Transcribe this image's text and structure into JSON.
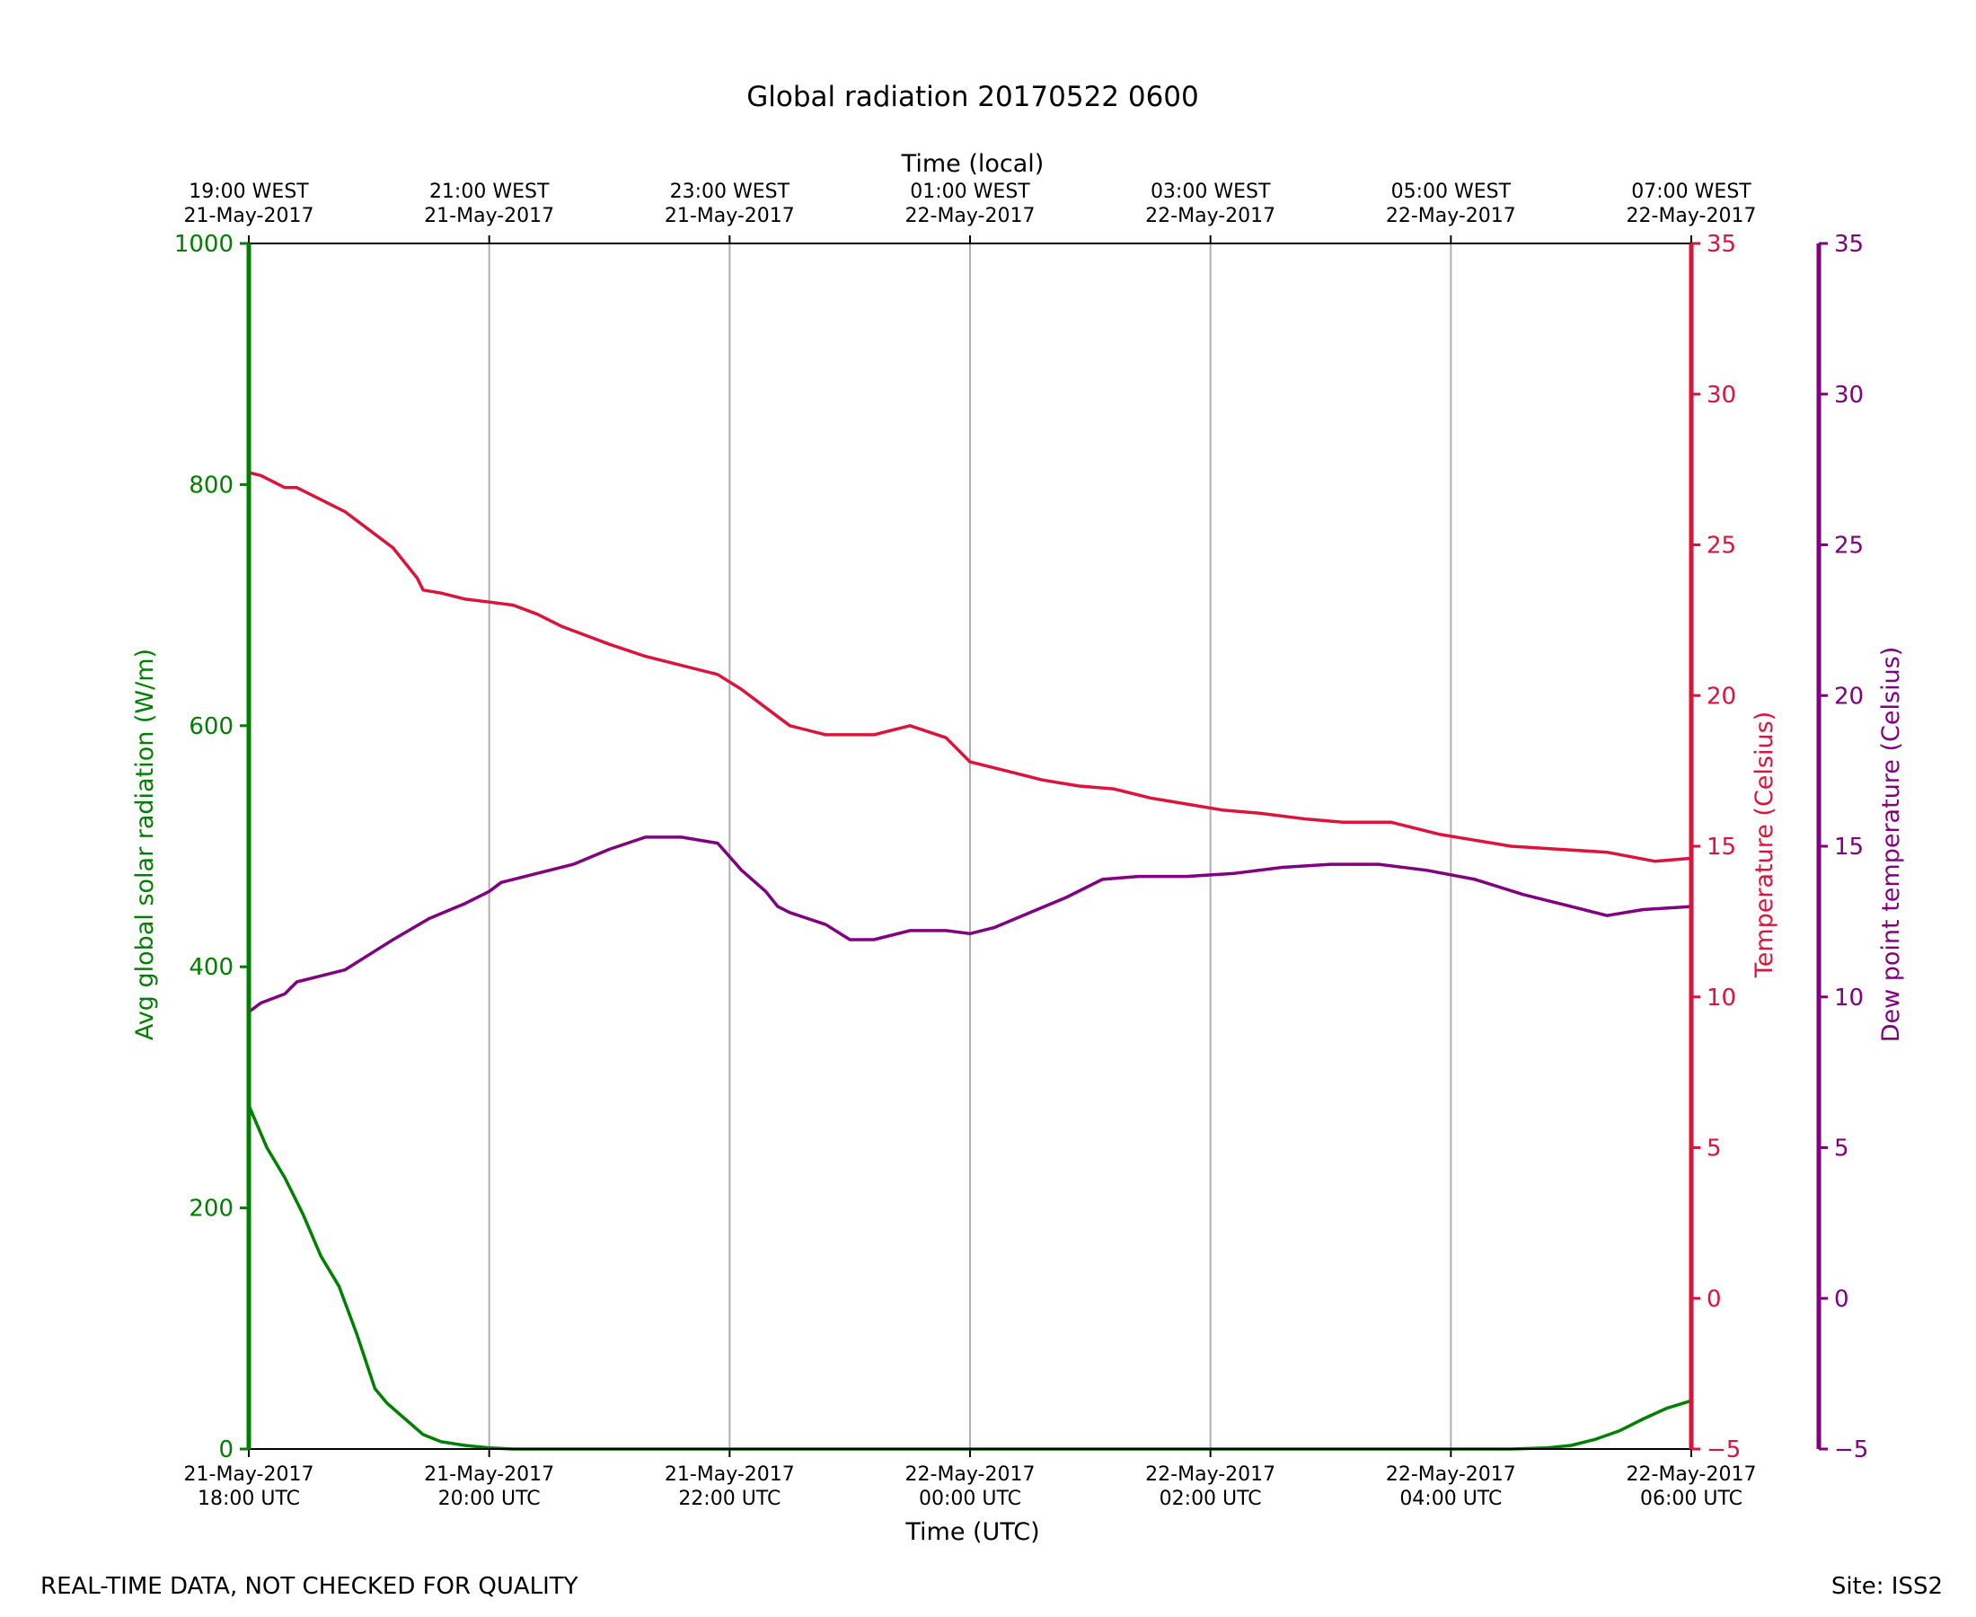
{
  "chart_data": {
    "type": "line",
    "title": "Global radiation 20170522 0600",
    "xlabel_bottom": "Time (UTC)",
    "xlabel_top": "Time (local)",
    "xlim_hours_utc": [
      0,
      12
    ],
    "bottom_ticks": [
      {
        "hour": 0,
        "line1": "21-May-2017",
        "line2": "18:00 UTC"
      },
      {
        "hour": 2,
        "line1": "21-May-2017",
        "line2": "20:00 UTC"
      },
      {
        "hour": 4,
        "line1": "21-May-2017",
        "line2": "22:00 UTC"
      },
      {
        "hour": 6,
        "line1": "22-May-2017",
        "line2": "00:00 UTC"
      },
      {
        "hour": 8,
        "line1": "22-May-2017",
        "line2": "02:00 UTC"
      },
      {
        "hour": 10,
        "line1": "22-May-2017",
        "line2": "04:00 UTC"
      },
      {
        "hour": 12,
        "line1": "22-May-2017",
        "line2": "06:00 UTC"
      }
    ],
    "top_ticks": [
      {
        "hour": 0,
        "line1": "19:00 WEST",
        "line2": "21-May-2017"
      },
      {
        "hour": 2,
        "line1": "21:00 WEST",
        "line2": "21-May-2017"
      },
      {
        "hour": 4,
        "line1": "23:00 WEST",
        "line2": "21-May-2017"
      },
      {
        "hour": 6,
        "line1": "01:00 WEST",
        "line2": "22-May-2017"
      },
      {
        "hour": 8,
        "line1": "03:00 WEST",
        "line2": "22-May-2017"
      },
      {
        "hour": 10,
        "line1": "05:00 WEST",
        "line2": "22-May-2017"
      },
      {
        "hour": 12,
        "line1": "07:00 WEST",
        "line2": "22-May-2017"
      }
    ],
    "grid": "vertical",
    "axes": [
      {
        "id": "radiation",
        "label": "Avg global solar radiation (W/m)",
        "color": "#008000",
        "side": "left",
        "ylim": [
          0,
          1000
        ],
        "ticks": [
          0,
          200,
          400,
          600,
          800,
          1000
        ]
      },
      {
        "id": "temperature",
        "label": "Temperature (Celsius)",
        "color": "#dc143c",
        "side": "right",
        "ylim": [
          -5,
          35
        ],
        "ticks": [
          -5,
          0,
          5,
          10,
          15,
          20,
          25,
          30,
          35
        ]
      },
      {
        "id": "dewpoint",
        "label": "Dew point temperature (Celsius)",
        "color": "#800080",
        "side": "right-outer",
        "ylim": [
          -5,
          35
        ],
        "ticks": [
          -5,
          0,
          5,
          10,
          15,
          20,
          25,
          30,
          35
        ]
      }
    ],
    "series": [
      {
        "axis": "radiation",
        "color": "#008000",
        "x": [
          0,
          0.15,
          0.3,
          0.45,
          0.6,
          0.75,
          0.9,
          1.05,
          1.15,
          1.3,
          1.45,
          1.6,
          1.8,
          2.0,
          2.2,
          2.5,
          3,
          4,
          5,
          6,
          7,
          8,
          9,
          10,
          10.5,
          10.8,
          11.0,
          11.2,
          11.4,
          11.6,
          11.8,
          12
        ],
        "y": [
          285,
          250,
          225,
          195,
          160,
          135,
          95,
          50,
          38,
          25,
          12,
          6,
          3,
          1,
          0,
          0,
          0,
          0,
          0,
          0,
          0,
          0,
          0,
          0,
          0,
          1,
          3,
          8,
          15,
          25,
          34,
          40
        ]
      },
      {
        "axis": "temperature",
        "color": "#dc143c",
        "x": [
          0,
          0.1,
          0.3,
          0.4,
          0.6,
          0.8,
          1.0,
          1.2,
          1.4,
          1.45,
          1.6,
          1.8,
          2.0,
          2.2,
          2.4,
          2.6,
          2.8,
          3.0,
          3.3,
          3.6,
          3.9,
          4.1,
          4.3,
          4.5,
          4.8,
          5.0,
          5.2,
          5.5,
          5.8,
          6.0,
          6.3,
          6.6,
          6.9,
          7.2,
          7.5,
          7.8,
          8.1,
          8.4,
          8.8,
          9.1,
          9.5,
          9.9,
          10.2,
          10.5,
          10.9,
          11.3,
          11.7,
          12
        ],
        "y": [
          27.4,
          27.3,
          26.9,
          26.9,
          26.5,
          26.1,
          25.5,
          24.9,
          23.9,
          23.5,
          23.4,
          23.2,
          23.1,
          23.0,
          22.7,
          22.3,
          22.0,
          21.7,
          21.3,
          21.0,
          20.7,
          20.2,
          19.6,
          19.0,
          18.7,
          18.7,
          18.7,
          19.0,
          18.6,
          17.8,
          17.5,
          17.2,
          17.0,
          16.9,
          16.6,
          16.4,
          16.2,
          16.1,
          15.9,
          15.8,
          15.8,
          15.4,
          15.2,
          15.0,
          14.9,
          14.8,
          14.5,
          14.6
        ]
      },
      {
        "axis": "dewpoint",
        "color": "#800080",
        "x": [
          0,
          0.1,
          0.3,
          0.4,
          0.6,
          0.8,
          1.0,
          1.2,
          1.5,
          1.8,
          2.0,
          2.1,
          2.4,
          2.7,
          3.0,
          3.3,
          3.6,
          3.9,
          4.1,
          4.3,
          4.4,
          4.5,
          4.8,
          5.0,
          5.2,
          5.5,
          5.8,
          6.0,
          6.2,
          6.5,
          6.8,
          7.1,
          7.4,
          7.8,
          8.2,
          8.6,
          9.0,
          9.4,
          9.8,
          10.2,
          10.6,
          11.0,
          11.3,
          11.6,
          12
        ],
        "y": [
          9.5,
          9.8,
          10.1,
          10.5,
          10.7,
          10.9,
          11.4,
          11.9,
          12.6,
          13.1,
          13.5,
          13.8,
          14.1,
          14.4,
          14.9,
          15.3,
          15.3,
          15.1,
          14.2,
          13.5,
          13.0,
          12.8,
          12.4,
          11.9,
          11.9,
          12.2,
          12.2,
          12.1,
          12.3,
          12.8,
          13.3,
          13.9,
          14.0,
          14.0,
          14.1,
          14.3,
          14.4,
          14.4,
          14.2,
          13.9,
          13.4,
          13.0,
          12.7,
          12.9,
          13.0
        ]
      }
    ]
  },
  "footer": {
    "left": "REAL-TIME DATA, NOT CHECKED FOR QUALITY",
    "right": "Site: ISS2"
  }
}
